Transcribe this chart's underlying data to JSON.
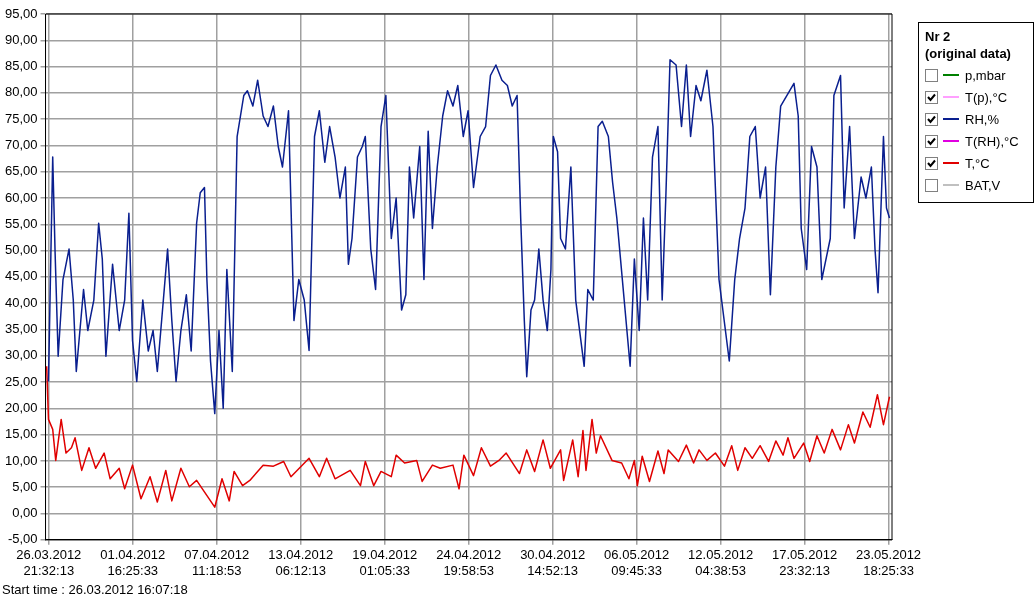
{
  "chart_data": {
    "type": "line",
    "legend_title": "Nr 2\n(original data)",
    "annotations": [
      "Start time : 26.03.2012 16:07:18"
    ],
    "xlim": [
      "2012-03-26T16:07:18",
      "2012-05-24T00:07"
    ],
    "ylim": [
      -5,
      95
    ],
    "xticks": [
      {
        "value": "2012-03-26T21:32:13",
        "label": "26.03.2012 21:32:13"
      },
      {
        "value": "2012-04-01T16:25:33",
        "label": "01.04.2012 16:25:33"
      },
      {
        "value": "2012-04-07T11:18:53",
        "label": "07.04.2012 11:18:53"
      },
      {
        "value": "2012-04-13T06:12:13",
        "label": "13.04.2012 06:12:13"
      },
      {
        "value": "2012-04-19T01:05:33",
        "label": "19.04.2012 01:05:33"
      },
      {
        "value": "2012-04-24T19:58:53",
        "label": "24.04.2012 19:58:53"
      },
      {
        "value": "2012-04-30T14:52:13",
        "label": "30.04.2012 14:52:13"
      },
      {
        "value": "2012-05-06T09:45:33",
        "label": "06.05.2012 09:45:33"
      },
      {
        "value": "2012-05-12T04:38:53",
        "label": "12.05.2012 04:38:53"
      },
      {
        "value": "2012-05-17T23:32:13",
        "label": "17.05.2012 23:32:13"
      },
      {
        "value": "2012-05-23T18:25:33",
        "label": "23.05.2012 18:25:33"
      }
    ],
    "yticks": [
      {
        "value": -5,
        "label": "-5,00"
      },
      {
        "value": 0,
        "label": "0,00"
      },
      {
        "value": 5,
        "label": "5,00"
      },
      {
        "value": 10,
        "label": "10,00"
      },
      {
        "value": 15,
        "label": "15,00"
      },
      {
        "value": 20,
        "label": "20,00"
      },
      {
        "value": 25,
        "label": "25,00"
      },
      {
        "value": 30,
        "label": "30,00"
      },
      {
        "value": 35,
        "label": "35,00"
      },
      {
        "value": 40,
        "label": "40,00"
      },
      {
        "value": 45,
        "label": "45,00"
      },
      {
        "value": 50,
        "label": "50,00"
      },
      {
        "value": 55,
        "label": "55,00"
      },
      {
        "value": 60,
        "label": "60,00"
      },
      {
        "value": 65,
        "label": "65,00"
      },
      {
        "value": 70,
        "label": "70,00"
      },
      {
        "value": 75,
        "label": "75,00"
      },
      {
        "value": 80,
        "label": "80,00"
      },
      {
        "value": 85,
        "label": "85,00"
      },
      {
        "value": 90,
        "label": "90,00"
      },
      {
        "value": 95,
        "label": "95,00"
      }
    ],
    "grid": true,
    "legend": "top right",
    "marker": "none",
    "line_style": "solid",
    "series": [
      {
        "name": "p,mbar",
        "color": "#008000"
      },
      {
        "name": "T(p),°C",
        "color": "#ffa0ff",
        "type": "line"
      },
      {
        "name": "RH,%",
        "color": "#0a1f8f",
        "x": [
          "2012-03-26T21:00",
          "2012-03-27T04:00",
          "2012-03-27T08:00",
          "2012-03-27T13:00",
          "2012-03-27T21:00",
          "2012-03-28T07:00",
          "2012-03-28T14:00",
          "2012-03-28T19:00",
          "2012-03-29T07:00",
          "2012-03-29T14:00",
          "2012-03-30T00:00",
          "2012-03-30T08:00",
          "2012-03-30T14:00",
          "2012-03-30T20:00",
          "2012-03-31T07:00",
          "2012-03-31T18:00",
          "2012-04-01T03:00",
          "2012-04-01T10:00",
          "2012-04-01T16:00",
          "2012-04-01T23:00",
          "2012-04-02T09:00",
          "2012-04-02T18:00",
          "2012-04-03T02:00",
          "2012-04-03T09:00",
          "2012-04-03T19:00",
          "2012-04-04T02:00",
          "2012-04-04T09:00",
          "2012-04-04T16:00",
          "2012-04-05T00:00",
          "2012-04-05T09:00",
          "2012-04-05T17:00",
          "2012-04-06T02:00",
          "2012-04-06T08:00",
          "2012-04-06T15:00",
          "2012-04-06T19:00",
          "2012-04-07T01:00",
          "2012-04-07T08:00",
          "2012-04-07T15:00",
          "2012-04-07T22:00",
          "2012-04-08T04:00",
          "2012-04-08T13:00",
          "2012-04-08T21:00",
          "2012-04-09T08:00",
          "2012-04-09T14:00",
          "2012-04-09T23:00",
          "2012-04-10T07:00",
          "2012-04-10T16:00",
          "2012-04-11T00:00",
          "2012-04-11T09:00",
          "2012-04-11T17:00",
          "2012-04-12T00:00",
          "2012-04-12T10:00",
          "2012-04-12T19:00",
          "2012-04-13T03:00",
          "2012-04-13T12:00",
          "2012-04-13T20:00",
          "2012-04-14T05:00",
          "2012-04-14T13:00",
          "2012-04-14T22:00",
          "2012-04-15T06:00",
          "2012-04-15T15:00",
          "2012-04-15T23:00",
          "2012-04-16T08:00",
          "2012-04-16T13:00",
          "2012-04-16T19:00",
          "2012-04-17T04:00",
          "2012-04-17T12:00",
          "2012-04-17T17:00",
          "2012-04-18T02:00",
          "2012-04-18T10:00",
          "2012-04-18T19:00",
          "2012-04-19T03:00",
          "2012-04-19T12:00",
          "2012-04-19T20:00",
          "2012-04-20T05:00",
          "2012-04-20T12:00",
          "2012-04-20T18:00",
          "2012-04-21T01:00",
          "2012-04-21T11:00",
          "2012-04-21T18:00",
          "2012-04-22T01:00",
          "2012-04-22T08:00",
          "2012-04-22T16:00",
          "2012-04-23T01:00",
          "2012-04-23T09:00",
          "2012-04-23T18:00",
          "2012-04-24T02:00",
          "2012-04-24T11:00",
          "2012-04-24T19:00",
          "2012-04-25T04:00",
          "2012-04-25T15:00",
          "2012-04-26T00:00",
          "2012-04-26T08:00",
          "2012-04-26T17:00",
          "2012-04-27T03:00",
          "2012-04-27T12:00",
          "2012-04-27T20:00",
          "2012-04-28T04:00",
          "2012-04-28T10:00",
          "2012-04-28T16:00",
          "2012-04-28T20:00",
          "2012-04-29T03:00",
          "2012-04-29T09:00",
          "2012-04-29T16:00",
          "2012-04-29T23:00",
          "2012-04-30T06:00",
          "2012-04-30T12:00",
          "2012-04-30T16:00",
          "2012-04-30T23:00",
          "2012-05-01T04:00",
          "2012-05-01T12:00",
          "2012-05-01T21:00",
          "2012-05-02T05:00",
          "2012-05-02T19:00",
          "2012-05-03T01:00",
          "2012-05-03T10:00",
          "2012-05-03T18:00",
          "2012-05-04T01:00",
          "2012-05-04T11:00",
          "2012-05-04T18:00",
          "2012-05-05T01:00",
          "2012-05-05T23:00",
          "2012-05-06T06:00",
          "2012-05-06T14:00",
          "2012-05-06T21:00",
          "2012-05-07T04:00",
          "2012-05-07T12:00",
          "2012-05-07T21:00",
          "2012-05-08T04:00",
          "2012-05-08T10:00",
          "2012-05-08T17:00",
          "2012-05-09T03:00",
          "2012-05-09T12:00",
          "2012-05-09T20:00",
          "2012-05-10T03:00",
          "2012-05-10T12:00",
          "2012-05-10T20:00",
          "2012-05-11T06:00",
          "2012-05-11T16:00",
          "2012-05-12T02:00",
          "2012-05-12T19:00",
          "2012-05-13T04:00",
          "2012-05-13T12:00",
          "2012-05-13T21:00",
          "2012-05-14T05:00",
          "2012-05-14T14:00",
          "2012-05-14T22:00",
          "2012-05-15T07:00",
          "2012-05-15T15:00",
          "2012-05-16T00:00",
          "2012-05-16T08:00",
          "2012-05-17T06:00",
          "2012-05-17T13:00",
          "2012-05-17T18:00",
          "2012-05-18T03:00",
          "2012-05-18T11:00",
          "2012-05-18T20:00",
          "2012-05-19T04:00",
          "2012-05-19T18:00",
          "2012-05-20T00:00",
          "2012-05-20T11:00",
          "2012-05-20T17:00",
          "2012-05-21T02:00",
          "2012-05-21T10:00",
          "2012-05-21T21:00",
          "2012-05-22T05:00",
          "2012-05-22T14:00",
          "2012-05-22T20:00",
          "2012-05-23T01:00",
          "2012-05-23T10:00",
          "2012-05-23T15:00",
          "2012-05-23T20:00"
        ],
        "values": [
          25.1,
          67.8,
          49.4,
          29.9,
          44.5,
          50.3,
          40.6,
          27,
          42.6,
          34.8,
          40.6,
          55.2,
          48.4,
          29.9,
          47.4,
          34.8,
          40.6,
          57.1,
          32.9,
          25.1,
          40.6,
          30.9,
          34.8,
          27,
          40.6,
          50.3,
          36.7,
          25.1,
          34.8,
          41.6,
          30.9,
          55.2,
          61,
          62,
          44.5,
          29,
          19,
          34.8,
          20,
          46.4,
          27,
          71.7,
          79.5,
          80.4,
          77.5,
          82.4,
          75.6,
          73.6,
          77.5,
          69.8,
          65.9,
          76.6,
          36.7,
          44.5,
          40.6,
          31,
          71.7,
          76.6,
          66.8,
          73.6,
          67.8,
          60,
          65.9,
          47.4,
          52.3,
          67.8,
          69.8,
          71.7,
          50.3,
          42.6,
          73.6,
          79.5,
          52.3,
          60,
          38.7,
          41.6,
          65.9,
          56.2,
          69.8,
          44.5,
          72.7,
          54.2,
          65.9,
          75.6,
          80.4,
          77.5,
          81.4,
          71.7,
          76.6,
          62,
          71.7,
          73.6,
          83.3,
          85.3,
          82.4,
          81.4,
          77.5,
          79.5,
          56.2,
          36.7,
          26,
          38.7,
          40.6,
          50.3,
          40.6,
          34.8,
          46.4,
          71.7,
          68.8,
          52.3,
          50.3,
          65.9,
          40.6,
          28,
          42.6,
          40.6,
          73.6,
          74.6,
          71.7,
          63,
          56.2,
          28,
          48.4,
          34.8,
          56.2,
          40.6,
          67.8,
          73.6,
          40.6,
          60,
          86.3,
          85.3,
          73.6,
          85.3,
          71.7,
          81.4,
          78.5,
          84.3,
          73.6,
          44.5,
          29,
          44.5,
          52.3,
          58.1,
          71.7,
          73.6,
          60,
          65.9,
          41.6,
          65.9,
          77.5,
          81.8,
          75.6,
          54.2,
          46.4,
          69.8,
          65.9,
          44.5,
          52.3,
          79.5,
          83.3,
          58.1,
          73.6,
          52.3,
          64,
          60,
          65.9,
          50.3,
          42,
          71.7,
          58.1,
          56.2
        ]
      },
      {
        "name": "T(RH),°C",
        "color": "#e000e0",
        "type": "line"
      },
      {
        "name": "T,°C",
        "color": "#e00000",
        "x": [
          "2012-03-26T18:00",
          "2012-03-26T21:00",
          "2012-03-27T04:00",
          "2012-03-27T09:00",
          "2012-03-27T18:00",
          "2012-03-28T02:00",
          "2012-03-28T11:00",
          "2012-03-28T17:00",
          "2012-03-29T04:00",
          "2012-03-29T16:00",
          "2012-03-30T03:00",
          "2012-03-30T17:00",
          "2012-03-31T03:00",
          "2012-03-31T18:00",
          "2012-04-01T03:00",
          "2012-04-01T16:00",
          "2012-04-02T06:00",
          "2012-04-02T21:00",
          "2012-04-03T09:00",
          "2012-04-03T23:00",
          "2012-04-04T09:00",
          "2012-04-05T00:00",
          "2012-04-05T14:00",
          "2012-04-06T02:00",
          "2012-04-07T08:00",
          "2012-04-07T20:00",
          "2012-04-08T08:00",
          "2012-04-08T16:00",
          "2012-04-09T06:00",
          "2012-04-09T18:00",
          "2012-04-10T16:00",
          "2012-04-11T09:00",
          "2012-04-12T02:00",
          "2012-04-12T14:00",
          "2012-04-13T20:00",
          "2012-04-14T13:00",
          "2012-04-15T01:00",
          "2012-04-15T15:00",
          "2012-04-16T16:00",
          "2012-04-17T09:00",
          "2012-04-17T17:00",
          "2012-04-18T07:00",
          "2012-04-18T19:00",
          "2012-04-19T12:00",
          "2012-04-19T20:00",
          "2012-04-20T10:00",
          "2012-04-21T06:00",
          "2012-04-21T15:00",
          "2012-04-22T08:00",
          "2012-04-22T21:00",
          "2012-04-23T18:00",
          "2012-04-24T04:00",
          "2012-04-24T12:00",
          "2012-04-25T04:00",
          "2012-04-25T17:00",
          "2012-04-26T08:00",
          "2012-04-26T22:00",
          "2012-04-27T10:00",
          "2012-04-28T08:00",
          "2012-04-28T20:00",
          "2012-04-29T09:00",
          "2012-04-29T23:00",
          "2012-04-30T11:00",
          "2012-05-01T04:00",
          "2012-05-01T09:00",
          "2012-05-02T00:00",
          "2012-05-02T09:00",
          "2012-05-02T17:00",
          "2012-05-02T22:00",
          "2012-05-03T08:00",
          "2012-05-03T15:00",
          "2012-05-03T22:00",
          "2012-05-04T17:00",
          "2012-05-05T09:00",
          "2012-05-05T21:00",
          "2012-05-06T06:00",
          "2012-05-06T11:00",
          "2012-05-06T19:00",
          "2012-05-07T07:00",
          "2012-05-07T21:00",
          "2012-05-08T07:00",
          "2012-05-08T14:00",
          "2012-05-09T07:00",
          "2012-05-09T20:00",
          "2012-05-10T08:00",
          "2012-05-10T17:00",
          "2012-05-11T06:00",
          "2012-05-11T20:00",
          "2012-05-12T11:00",
          "2012-05-12T23:00",
          "2012-05-13T09:00",
          "2012-05-13T21:00",
          "2012-05-14T09:00",
          "2012-05-14T22:00",
          "2012-05-15T12:00",
          "2012-05-16T00:00",
          "2012-05-16T12:00",
          "2012-05-16T20:00",
          "2012-05-17T06:00",
          "2012-05-17T22:00",
          "2012-05-18T08:00",
          "2012-05-18T20:00",
          "2012-05-19T08:00",
          "2012-05-19T21:00",
          "2012-05-20T11:00",
          "2012-05-21T00:00",
          "2012-05-21T10:00",
          "2012-05-22T00:00",
          "2012-05-22T12:00",
          "2012-05-23T00:00",
          "2012-05-23T10:00",
          "2012-05-23T20:00"
        ],
        "values": [
          28,
          17.9,
          16,
          10.1,
          17.9,
          11.5,
          12.5,
          14.4,
          8.2,
          12.5,
          8.6,
          11.5,
          6.6,
          8.6,
          4.7,
          9.2,
          2.8,
          7,
          2.2,
          8.2,
          2.4,
          8.6,
          5.1,
          6.3,
          1.2,
          6.6,
          2.4,
          8,
          5.3,
          6.3,
          9.2,
          9,
          9.9,
          7,
          10.5,
          7,
          10.5,
          6.6,
          8.2,
          5.3,
          9.9,
          5.3,
          8,
          7,
          11.1,
          9.6,
          10.1,
          6.1,
          9.2,
          8.6,
          9.2,
          4.7,
          11.1,
          7.2,
          12.5,
          9,
          10.1,
          11.5,
          7.6,
          12.1,
          8,
          14,
          8.6,
          12.1,
          6.3,
          14,
          7,
          15.8,
          8.2,
          17.9,
          11.5,
          14.8,
          10.1,
          9.6,
          6.6,
          10.1,
          5.3,
          10.9,
          6.1,
          11.9,
          7.6,
          12.1,
          9.9,
          13,
          9.6,
          12.1,
          10.1,
          11.5,
          9,
          12.9,
          8.2,
          12.5,
          10.5,
          12.9,
          9.9,
          13.8,
          11.1,
          14.4,
          10.5,
          13.4,
          9.9,
          14.8,
          11.5,
          16,
          12.1,
          16.9,
          13.4,
          19.3,
          16.4,
          22.6,
          16.9,
          22.2
        ]
      },
      {
        "name": "BAT,V",
        "color": "#c0c0c0"
      }
    ]
  }
}
